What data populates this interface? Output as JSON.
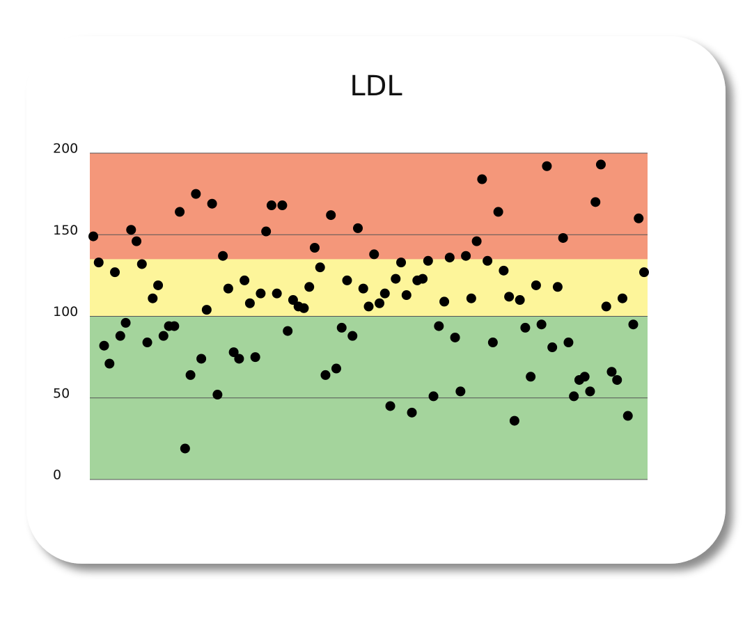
{
  "chart_data": {
    "type": "scatter",
    "title": "LDL",
    "ylim": [
      0,
      200
    ],
    "yticks": [
      0,
      50,
      100,
      150,
      200
    ],
    "grid": true,
    "bands": [
      {
        "range": [
          0,
          100
        ],
        "color": "#a4d49c"
      },
      {
        "range": [
          100,
          135
        ],
        "color": "#fdf59a"
      },
      {
        "range": [
          135,
          200
        ],
        "color": "#f4977a"
      }
    ],
    "color": "#000000",
    "values": [
      149,
      133,
      82,
      71,
      127,
      88,
      96,
      153,
      146,
      132,
      84,
      111,
      119,
      88,
      94,
      94,
      164,
      19,
      64,
      175,
      74,
      104,
      169,
      52,
      137,
      117,
      78,
      74,
      122,
      108,
      75,
      114,
      152,
      168,
      114,
      168,
      91,
      110,
      106,
      105,
      118,
      142,
      130,
      64,
      162,
      68,
      93,
      122,
      88,
      154,
      117,
      106,
      138,
      108,
      114,
      45,
      123,
      133,
      113,
      41,
      122,
      123,
      134,
      51,
      94,
      109,
      136,
      87,
      54,
      137,
      111,
      146,
      184,
      134,
      84,
      164,
      128,
      112,
      36,
      110,
      93,
      63,
      119,
      95,
      192,
      81,
      118,
      148,
      84,
      51,
      61,
      63,
      54,
      170,
      193,
      106,
      66,
      61,
      111,
      39,
      95,
      160,
      127
    ]
  }
}
